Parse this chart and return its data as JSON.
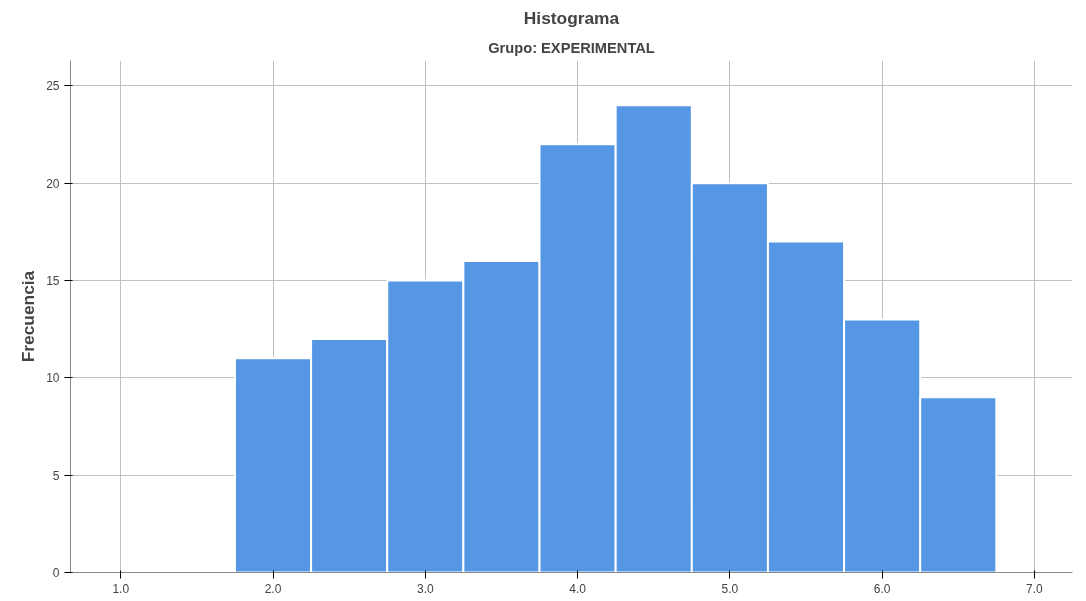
{
  "chart_data": {
    "type": "histogram",
    "title": "Histograma",
    "subtitle": "Grupo: EXPERIMENTAL",
    "ylabel": "Frecuencia",
    "bins": [
      1.75,
      2.25,
      2.75,
      3.25,
      3.75,
      4.25,
      4.75,
      5.25,
      5.75,
      6.25,
      6.75
    ],
    "values": [
      11,
      12,
      15,
      16,
      22,
      24,
      20,
      17,
      13,
      9
    ],
    "color": "#5596e5",
    "xlim": [
      0.67,
      7.25
    ],
    "ylim": [
      0,
      26.3
    ],
    "xticks": [
      {
        "value": 1,
        "label": "1.0"
      },
      {
        "value": 2,
        "label": "2.0"
      },
      {
        "value": 3,
        "label": "3.0"
      },
      {
        "value": 4,
        "label": "4.0"
      },
      {
        "value": 5,
        "label": "5.0"
      },
      {
        "value": 6,
        "label": "6.0"
      },
      {
        "value": 7,
        "label": "7.0"
      }
    ],
    "yticks": [
      0,
      5,
      10,
      15,
      20,
      25
    ],
    "grid": true
  }
}
